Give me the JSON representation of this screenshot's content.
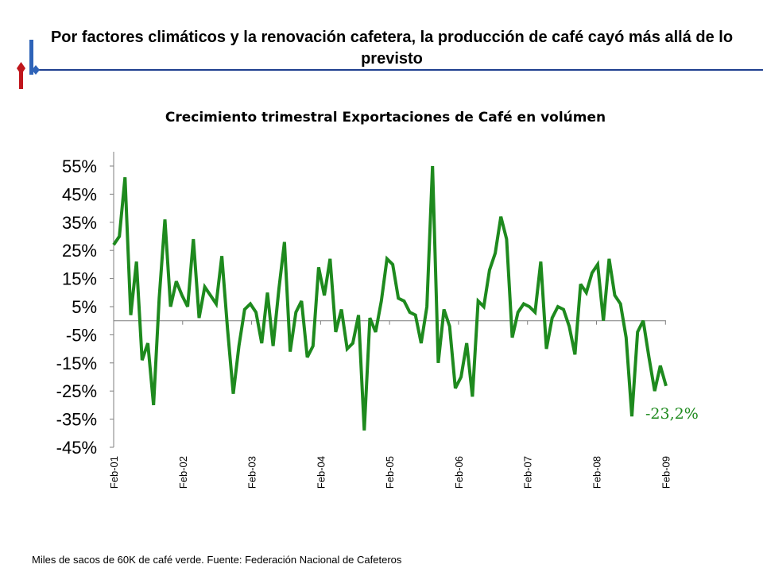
{
  "slide": {
    "title": "Por factores climáticos y la renovación cafetera, la producción de café cayó más allá de lo previsto",
    "footnote": "Miles de sacos de 60K de café verde.  Fuente: Federación Nacional de Cafeteros"
  },
  "colors": {
    "series": "#1e8a1e",
    "annotation": "#1e8a1e",
    "rule": "#1f3f8f",
    "logo_red": "#c0161c",
    "logo_blue": "#2e63b8"
  },
  "chart_data": {
    "type": "line",
    "title": "Crecimiento trimestral Exportaciones de Café en volúmen",
    "ylabel": "",
    "xlabel": "",
    "ylim": [
      -45,
      55
    ],
    "yticks": [
      "55%",
      "45%",
      "35%",
      "25%",
      "15%",
      "5%",
      "-5%",
      "-15%",
      "-25%",
      "-35%",
      "-45%"
    ],
    "ytick_values": [
      55,
      45,
      35,
      25,
      15,
      5,
      -5,
      -15,
      -25,
      -35,
      -45
    ],
    "xtick_labels": [
      "Feb-01",
      "Feb-02",
      "Feb-03",
      "Feb-04",
      "Feb-05",
      "Feb-06",
      "Feb-07",
      "Feb-08",
      "Feb-09"
    ],
    "grid": false,
    "annotation": "-23,2%",
    "series": [
      {
        "name": "",
        "values": [
          27,
          30,
          51,
          2,
          21,
          -14,
          -8,
          -30,
          8,
          36,
          5,
          14,
          9,
          5,
          29,
          1,
          12,
          9,
          6,
          23,
          -3,
          -26,
          -9,
          4,
          6,
          3,
          -8,
          10,
          -9,
          11,
          28,
          -11,
          3,
          7,
          -13,
          -9,
          19,
          9,
          22,
          -4,
          4,
          -10,
          -8,
          2,
          -39,
          1,
          -4,
          7,
          22,
          20,
          8,
          7,
          3,
          2,
          -8,
          5,
          55,
          -15,
          4,
          -2,
          -24,
          -20,
          -8,
          -27,
          7,
          5,
          18,
          24,
          37,
          29,
          -6,
          3,
          6,
          5,
          3,
          21,
          -10,
          1,
          5,
          4,
          -2,
          -12,
          13,
          10,
          17,
          20,
          0,
          22,
          9,
          6,
          -6,
          -34,
          -4,
          0,
          -13,
          -25,
          -16,
          -23.2
        ]
      }
    ]
  }
}
